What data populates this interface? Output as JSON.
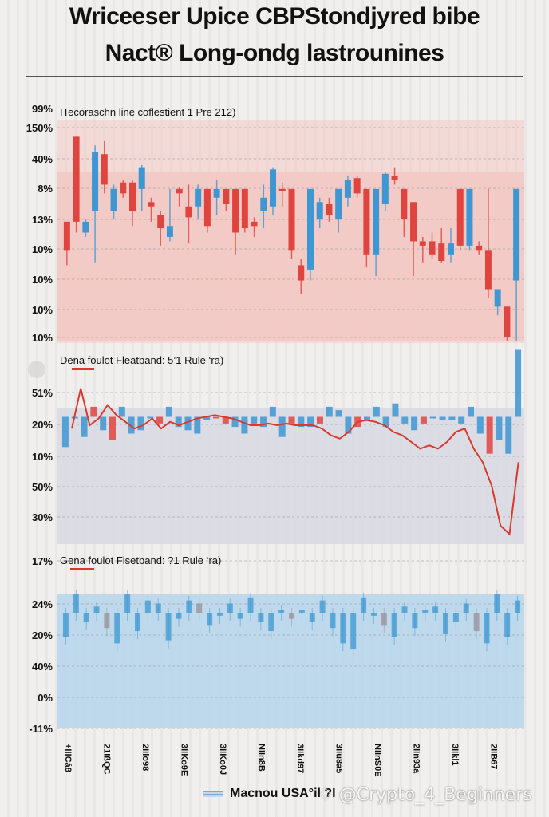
{
  "header": {
    "title_line1": "Wriceeser Upice CBPStondjyred bibe",
    "title_line2": "Nact® Long-ondg lastrounines"
  },
  "legend": {
    "label": "Macnou USA°il ?I"
  },
  "watermark": {
    "text": "♢ @Crypto_4_Beginners"
  },
  "colors": {
    "up": "#3d97d3",
    "down": "#e0443e",
    "panel1_bg": "#f3c9c4",
    "panel2_bg": "#d9d9e3",
    "panel3_bg": "#b9d7ea",
    "line": "#d83a2e"
  },
  "chart_data": [
    {
      "type": "bar",
      "subtype": "candlestick",
      "title": "ITecoraschn line coflestient 1 Pre 212)",
      "ytick_labels": [
        "99%",
        "150%",
        "40%",
        "8%",
        "13%",
        "10%",
        "10%",
        "10%",
        "10%"
      ],
      "baseline_tick": "8%",
      "ylim": [
        0,
        100
      ],
      "grid": true,
      "x": [
        "+IIICá8",
        "21IßQC",
        "2IIlo98",
        "3IIKo9E",
        "3IIKo0J",
        "NIIn8B",
        "3IIkd97",
        "3IIu8a5",
        "NIInS0E",
        "2IIn93a",
        "3IIkl1",
        "2IIB67"
      ],
      "candles": [
        {
          "open": 55,
          "close": 42,
          "high": 55,
          "low": 35
        },
        {
          "open": 94,
          "close": 55,
          "high": 94,
          "low": 50
        },
        {
          "open": 50,
          "close": 55,
          "high": 56,
          "low": 48
        },
        {
          "open": 60,
          "close": 87,
          "high": 90,
          "low": 36
        },
        {
          "open": 86,
          "close": 72,
          "high": 92,
          "low": 68
        },
        {
          "open": 60,
          "close": 70,
          "high": 72,
          "low": 56
        },
        {
          "open": 73,
          "close": 68,
          "high": 74,
          "low": 66
        },
        {
          "open": 73,
          "close": 60,
          "high": 74,
          "low": 53
        },
        {
          "open": 70,
          "close": 80,
          "high": 81,
          "low": 60
        },
        {
          "open": 64,
          "close": 62,
          "high": 66,
          "low": 55
        },
        {
          "open": 58,
          "close": 52,
          "high": 60,
          "low": 44
        },
        {
          "open": 48,
          "close": 53,
          "high": 70,
          "low": 46
        },
        {
          "open": 70,
          "close": 68,
          "high": 71,
          "low": 62
        },
        {
          "open": 62,
          "close": 57,
          "high": 72,
          "low": 45
        },
        {
          "open": 62,
          "close": 70,
          "high": 72,
          "low": 56
        },
        {
          "open": 70,
          "close": 53,
          "high": 70,
          "low": 50
        },
        {
          "open": 66,
          "close": 70,
          "high": 74,
          "low": 58
        },
        {
          "open": 70,
          "close": 63,
          "high": 70,
          "low": 60
        },
        {
          "open": 70,
          "close": 50,
          "high": 70,
          "low": 40
        },
        {
          "open": 70,
          "close": 52,
          "high": 70,
          "low": 50
        },
        {
          "open": 55,
          "close": 53,
          "high": 57,
          "low": 48
        },
        {
          "open": 60,
          "close": 66,
          "high": 72,
          "low": 52
        },
        {
          "open": 62,
          "close": 79,
          "high": 80,
          "low": 58
        },
        {
          "open": 70,
          "close": 69,
          "high": 73,
          "low": 62
        },
        {
          "open": 70,
          "close": 42,
          "high": 70,
          "low": 38
        },
        {
          "open": 35,
          "close": 28,
          "high": 38,
          "low": 22
        },
        {
          "open": 33,
          "close": 70,
          "high": 70,
          "low": 28
        },
        {
          "open": 56,
          "close": 64,
          "high": 66,
          "low": 52
        },
        {
          "open": 63,
          "close": 58,
          "high": 66,
          "low": 55
        },
        {
          "open": 56,
          "close": 70,
          "high": 70,
          "low": 50
        },
        {
          "open": 66,
          "close": 74,
          "high": 76,
          "low": 62
        },
        {
          "open": 75,
          "close": 68,
          "high": 76,
          "low": 66
        },
        {
          "open": 70,
          "close": 40,
          "high": 70,
          "low": 34
        },
        {
          "open": 40,
          "close": 70,
          "high": 70,
          "low": 30
        },
        {
          "open": 63,
          "close": 77,
          "high": 78,
          "low": 60
        },
        {
          "open": 76,
          "close": 74,
          "high": 80,
          "low": 72
        },
        {
          "open": 70,
          "close": 56,
          "high": 70,
          "low": 48
        },
        {
          "open": 64,
          "close": 46,
          "high": 64,
          "low": 30
        },
        {
          "open": 46,
          "close": 44,
          "high": 48,
          "low": 36
        },
        {
          "open": 46,
          "close": 40,
          "high": 50,
          "low": 38
        },
        {
          "open": 45,
          "close": 37,
          "high": 52,
          "low": 36
        },
        {
          "open": 40,
          "close": 45,
          "high": 52,
          "low": 36
        },
        {
          "open": 70,
          "close": 44,
          "high": 70,
          "low": 42
        },
        {
          "open": 44,
          "close": 70,
          "high": 70,
          "low": 42
        },
        {
          "open": 44,
          "close": 42,
          "high": 46,
          "low": 40
        },
        {
          "open": 42,
          "close": 24,
          "high": 70,
          "low": 20
        },
        {
          "open": 16,
          "close": 24,
          "high": 24,
          "low": 12
        },
        {
          "open": 16,
          "close": 2,
          "high": 16,
          "low": 0
        },
        {
          "open": 28,
          "close": 70,
          "high": 70,
          "low": 0
        }
      ]
    },
    {
      "type": "line",
      "subtype": "bar-with-line-overlay",
      "title": "Dena foulot Fleatband: 5’1 Rule ‘ra)",
      "ytick_labels": [
        "51%",
        "20%",
        "10%",
        "50%",
        "30%"
      ],
      "ylim": [
        0,
        100
      ],
      "grid": true,
      "bars_from_baseline": 75,
      "bars": [
        -18,
        0,
        -12,
        6,
        -8,
        -14,
        6,
        -10,
        -8,
        0,
        -4,
        6,
        -6,
        -8,
        -10,
        -2,
        0,
        -4,
        -6,
        -10,
        -4,
        -6,
        6,
        -12,
        -4,
        -6,
        -6,
        -4,
        6,
        4,
        -10,
        -6,
        -2,
        6,
        -6,
        8,
        -4,
        -8,
        -4,
        0,
        -2,
        -2,
        -4,
        6,
        -10,
        -22,
        -14,
        -22,
        40
      ],
      "line": [
        68,
        92,
        70,
        74,
        82,
        76,
        72,
        68,
        70,
        74,
        68,
        72,
        70,
        72,
        74,
        75,
        76,
        75,
        74,
        72,
        70,
        70,
        71,
        70,
        71,
        70,
        70,
        70,
        68,
        64,
        62,
        66,
        72,
        73,
        72,
        70,
        66,
        64,
        60,
        56,
        58,
        56,
        60,
        66,
        68,
        56,
        48,
        34,
        10,
        5,
        48
      ]
    },
    {
      "type": "bar",
      "title": "Gena foulot Flsetband: ?1 Rule ‘ra)",
      "ytick_labels": [
        "17%",
        "24%",
        "20%",
        "40%",
        "0%",
        "-11%"
      ],
      "ylim": [
        0,
        100
      ],
      "grid": true,
      "bars_from_baseline": 75,
      "bars": [
        -16,
        12,
        -6,
        4,
        -10,
        -20,
        12,
        -12,
        8,
        6,
        -18,
        -4,
        8,
        6,
        -8,
        -2,
        6,
        -4,
        10,
        -6,
        -12,
        2,
        -4,
        2,
        -6,
        8,
        -10,
        -20,
        -24,
        10,
        -2,
        -8,
        -16,
        4,
        -10,
        2,
        4,
        -14,
        -6,
        6,
        -12,
        -20,
        12,
        -16,
        8
      ]
    }
  ]
}
